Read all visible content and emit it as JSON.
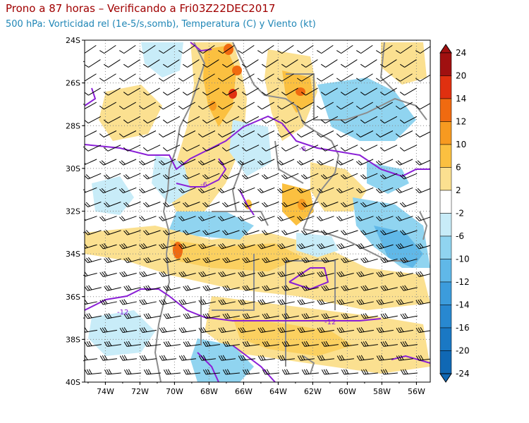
{
  "header": {
    "title": "Prono a 87 horas – Verificando a Fri03Z22DEC2017",
    "subtitle": "500 hPa: Vorticidad rel (1e-5/s,somb), Temperatura (C) y Viento (kt)"
  },
  "axes": {
    "lat_labels": [
      "24S",
      "26S",
      "28S",
      "30S",
      "32S",
      "34S",
      "36S",
      "38S",
      "40S"
    ],
    "lat_values": [
      -24,
      -26,
      -28,
      -30,
      -32,
      -34,
      -36,
      -38,
      -40
    ],
    "lon_labels": [
      "74W",
      "72W",
      "70W",
      "68W",
      "66W",
      "64W",
      "62W",
      "60W",
      "58W",
      "56W"
    ],
    "lon_values": [
      -74,
      -72,
      -70,
      -68,
      -66,
      -64,
      -62,
      -60,
      -58,
      -56
    ],
    "lon_range": [
      -75.2,
      -55.2
    ],
    "lat_range": [
      -40,
      -24
    ],
    "grid": true
  },
  "colorbar": {
    "labels": [
      "24",
      "20",
      "14",
      "12",
      "10",
      "6",
      "2",
      "-2",
      "-6",
      "-10",
      "-12",
      "-14",
      "-16",
      "-20",
      "-24"
    ],
    "colors": [
      "#a01010",
      "#e03010",
      "#f06a10",
      "#f79a20",
      "#fbc040",
      "#fbe090",
      "#ffffff",
      "#c8ecf8",
      "#90d4f0",
      "#60b8e8",
      "#3c9cdc",
      "#2888d0",
      "#1a78c4",
      "#1068b4"
    ]
  },
  "contours": {
    "color": "#8a1fd6",
    "labels": [
      "-6",
      "-6",
      "-12",
      "-12"
    ]
  },
  "colors": {
    "vort_positive": "#fbd979",
    "vort_negative": "#8fd1f1",
    "borders": "#8c8c8c",
    "barbs": "#000000"
  }
}
